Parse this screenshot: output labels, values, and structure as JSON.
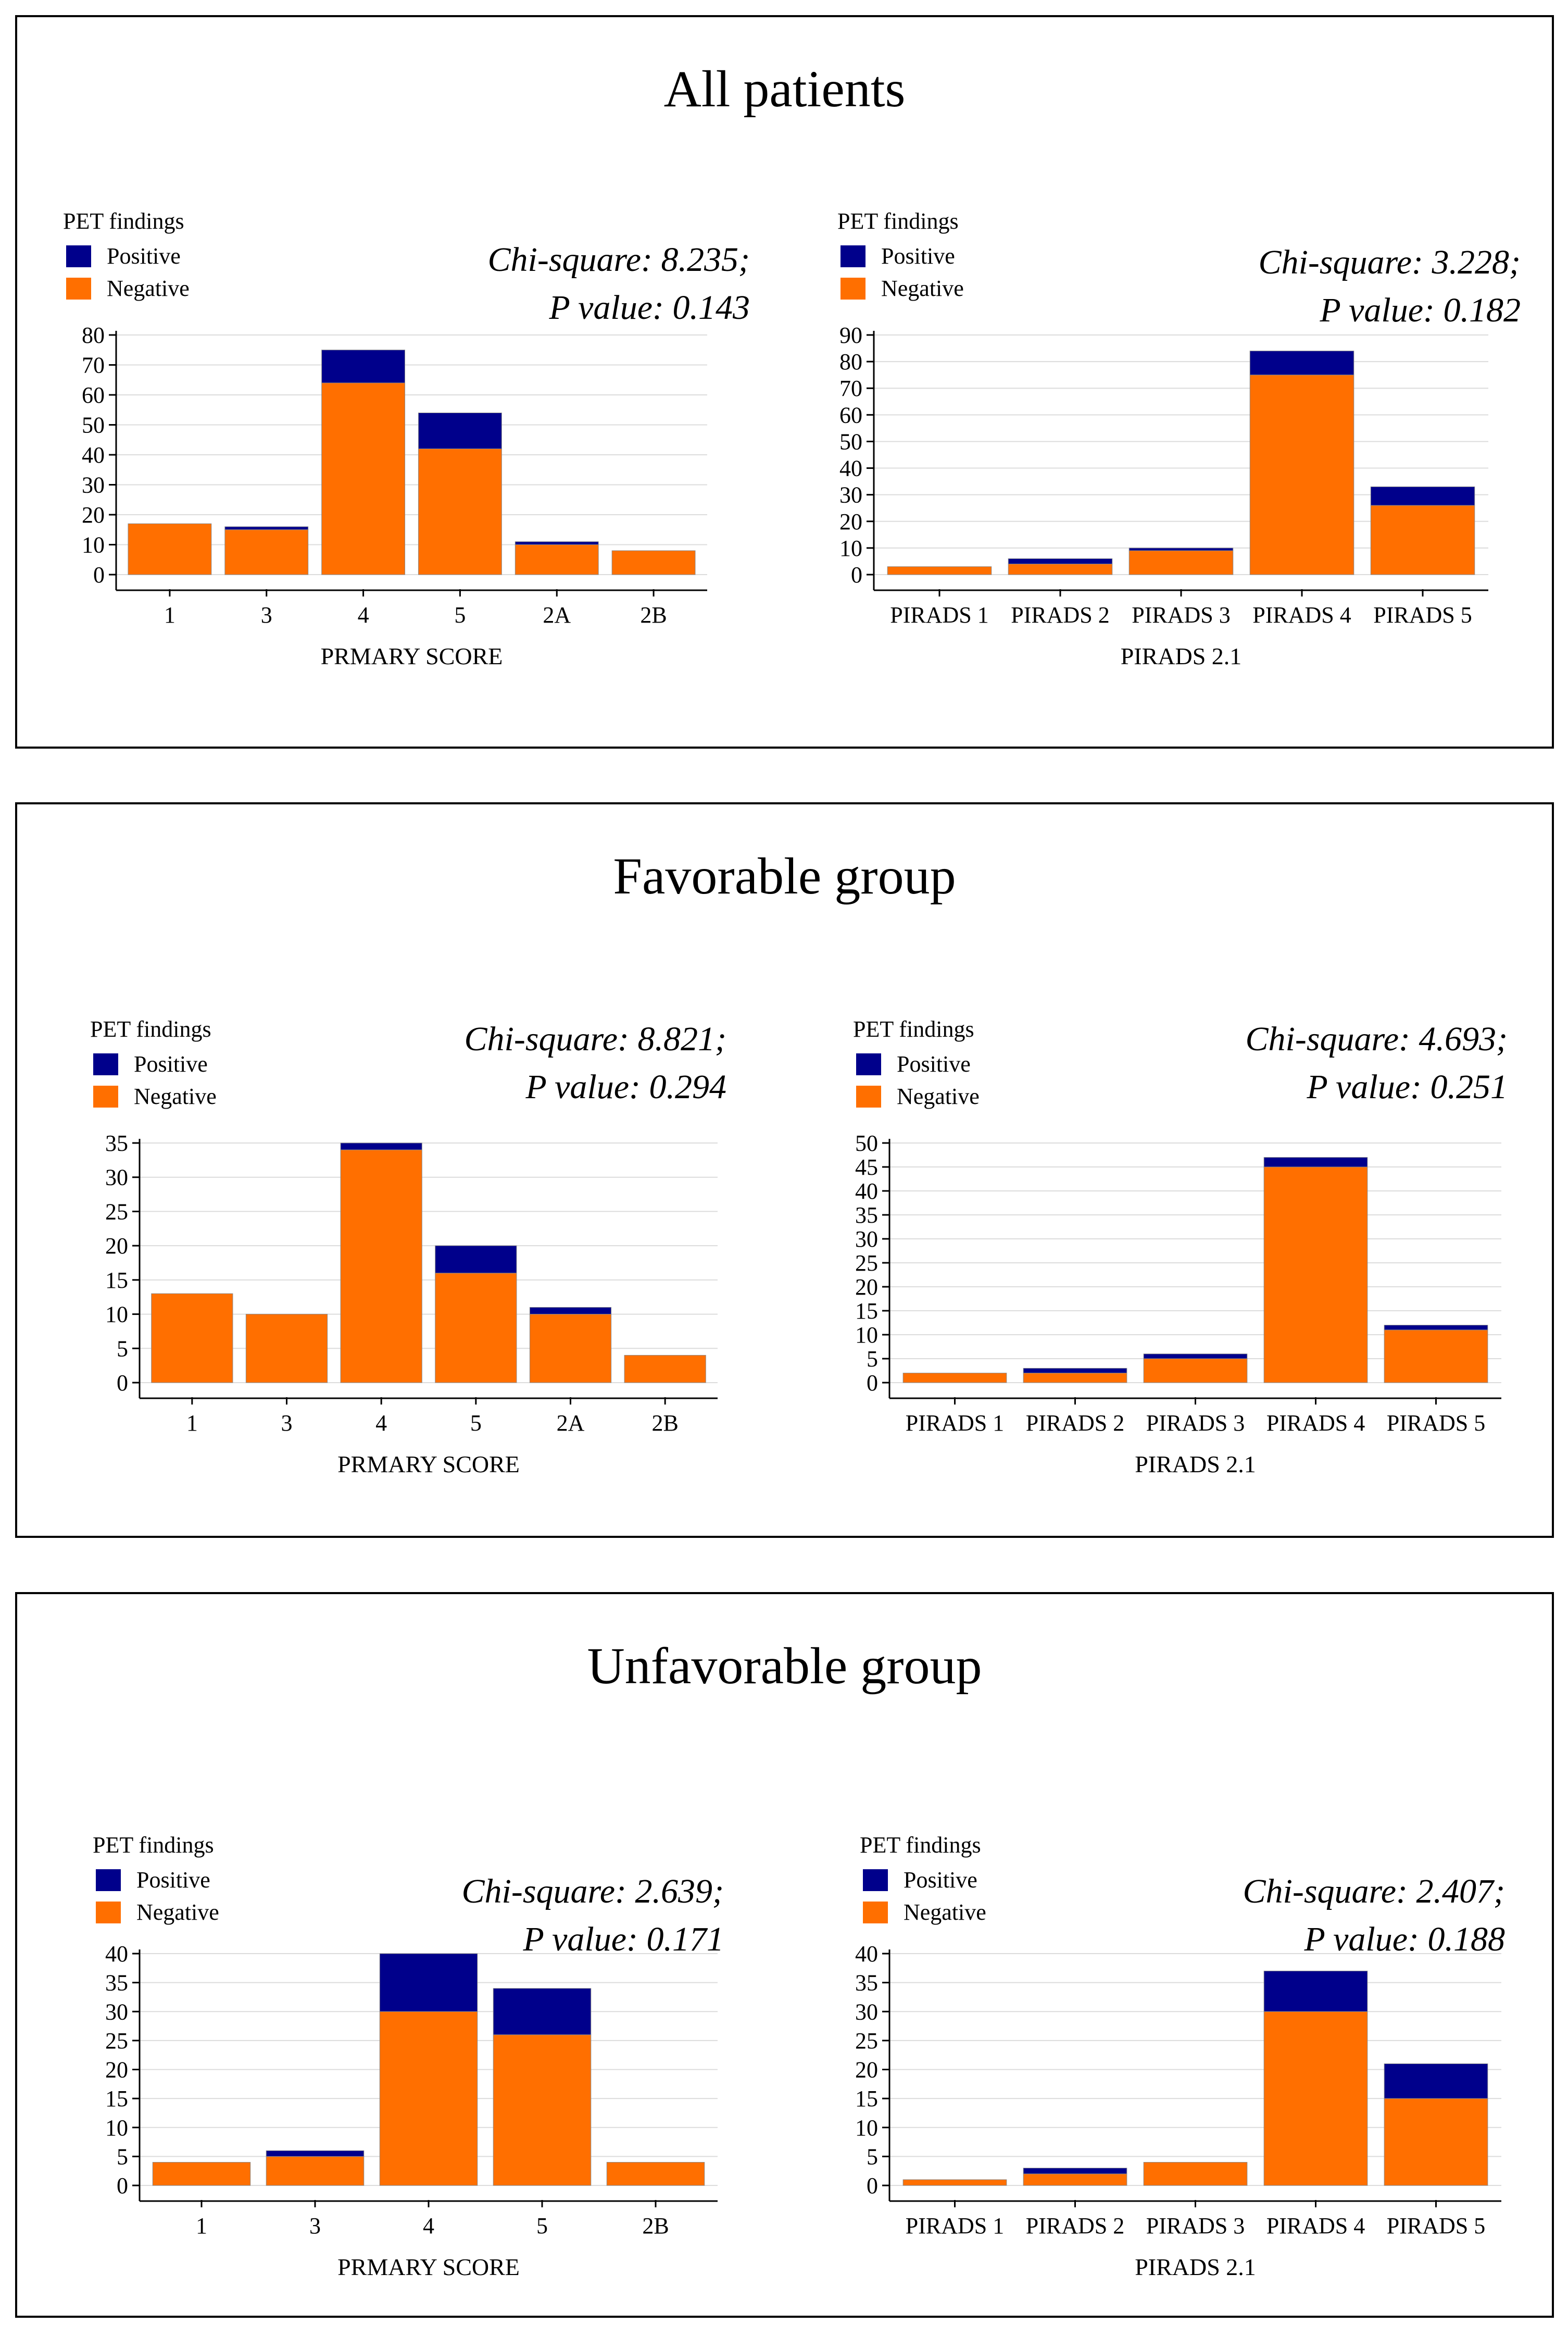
{
  "colors": {
    "positive": "#00008b",
    "negative": "#ff6f00",
    "grid": "#dcdcdc",
    "axis": "#000000"
  },
  "panels": [
    {
      "title": "All patients",
      "charts": [
        {
          "legend": {
            "title": "PET findings",
            "positive": "Positive",
            "negative": "Negative"
          },
          "stat_line1": "Chi-square: 8.235;",
          "stat_line2": "P value: 0.143",
          "chart_data": {
            "type": "bar",
            "stacked": true,
            "categories": [
              "1",
              "3",
              "4",
              "5",
              "2A",
              "2B"
            ],
            "series": [
              {
                "name": "Negative",
                "values": [
                  17,
                  15,
                  64,
                  42,
                  10,
                  8
                ]
              },
              {
                "name": "Positive",
                "values": [
                  0,
                  1,
                  11,
                  12,
                  1,
                  0
                ]
              }
            ],
            "xlabel": "PRMARY SCORE",
            "ylim": [
              0,
              80
            ],
            "yticks": [
              0,
              10,
              20,
              30,
              40,
              50,
              60,
              70,
              80
            ]
          }
        },
        {
          "legend": {
            "title": "PET findings",
            "positive": "Positive",
            "negative": "Negative"
          },
          "stat_line1": "Chi-square: 3.228;",
          "stat_line2": "P value: 0.182",
          "chart_data": {
            "type": "bar",
            "stacked": true,
            "categories": [
              "PIRADS 1",
              "PIRADS 2",
              "PIRADS 3",
              "PIRADS 4",
              "PIRADS 5"
            ],
            "series": [
              {
                "name": "Negative",
                "values": [
                  3,
                  4,
                  9,
                  75,
                  26
                ]
              },
              {
                "name": "Positive",
                "values": [
                  0,
                  2,
                  1,
                  9,
                  7
                ]
              }
            ],
            "xlabel": "PIRADS 2.1",
            "ylim": [
              0,
              90
            ],
            "yticks": [
              0,
              10,
              20,
              30,
              40,
              50,
              60,
              70,
              80,
              90
            ]
          }
        }
      ]
    },
    {
      "title": "Favorable group",
      "charts": [
        {
          "legend": {
            "title": "PET findings",
            "positive": "Positive",
            "negative": "Negative"
          },
          "stat_line1": "Chi-square: 8.821;",
          "stat_line2": "P value: 0.294",
          "chart_data": {
            "type": "bar",
            "stacked": true,
            "categories": [
              "1",
              "3",
              "4",
              "5",
              "2A",
              "2B"
            ],
            "series": [
              {
                "name": "Negative",
                "values": [
                  13,
                  10,
                  34,
                  16,
                  10,
                  4
                ]
              },
              {
                "name": "Positive",
                "values": [
                  0,
                  0,
                  1,
                  4,
                  1,
                  0
                ]
              }
            ],
            "xlabel": "PRMARY SCORE",
            "ylim": [
              0,
              35
            ],
            "yticks": [
              0,
              5,
              10,
              15,
              20,
              25,
              30,
              35
            ]
          }
        },
        {
          "legend": {
            "title": "PET findings",
            "positive": "Positive",
            "negative": "Negative"
          },
          "stat_line1": "Chi-square: 4.693;",
          "stat_line2": "P value: 0.251",
          "chart_data": {
            "type": "bar",
            "stacked": true,
            "categories": [
              "PIRADS 1",
              "PIRADS 2",
              "PIRADS 3",
              "PIRADS 4",
              "PIRADS 5"
            ],
            "series": [
              {
                "name": "Negative",
                "values": [
                  2,
                  2,
                  5,
                  45,
                  11
                ]
              },
              {
                "name": "Positive",
                "values": [
                  0,
                  1,
                  1,
                  2,
                  1
                ]
              }
            ],
            "xlabel": "PIRADS 2.1",
            "ylim": [
              0,
              50
            ],
            "yticks": [
              0,
              5,
              10,
              15,
              20,
              25,
              30,
              35,
              40,
              45,
              50
            ]
          }
        }
      ]
    },
    {
      "title": "Unfavorable group",
      "charts": [
        {
          "legend": {
            "title": "PET findings",
            "positive": "Positive",
            "negative": "Negative"
          },
          "stat_line1": "Chi-square: 2.639;",
          "stat_line2": "P value: 0.171",
          "chart_data": {
            "type": "bar",
            "stacked": true,
            "categories": [
              "1",
              "3",
              "4",
              "5",
              "2B"
            ],
            "series": [
              {
                "name": "Negative",
                "values": [
                  4,
                  5,
                  30,
                  26,
                  4
                ]
              },
              {
                "name": "Positive",
                "values": [
                  0,
                  1,
                  10,
                  8,
                  0
                ]
              }
            ],
            "xlabel": "PRMARY SCORE",
            "ylim": [
              0,
              40
            ],
            "yticks": [
              0,
              5,
              10,
              15,
              20,
              25,
              30,
              35,
              40
            ]
          }
        },
        {
          "legend": {
            "title": "PET findings",
            "positive": "Positive",
            "negative": "Negative"
          },
          "stat_line1": "Chi-square: 2.407;",
          "stat_line2": "P value: 0.188",
          "chart_data": {
            "type": "bar",
            "stacked": true,
            "categories": [
              "PIRADS 1",
              "PIRADS 2",
              "PIRADS 3",
              "PIRADS 4",
              "PIRADS 5"
            ],
            "series": [
              {
                "name": "Negative",
                "values": [
                  1,
                  2,
                  4,
                  30,
                  15
                ]
              },
              {
                "name": "Positive",
                "values": [
                  0,
                  1,
                  0,
                  7,
                  6
                ]
              }
            ],
            "xlabel": "PIRADS 2.1",
            "ylim": [
              0,
              40
            ],
            "yticks": [
              0,
              5,
              10,
              15,
              20,
              25,
              30,
              35,
              40
            ]
          }
        }
      ]
    }
  ]
}
